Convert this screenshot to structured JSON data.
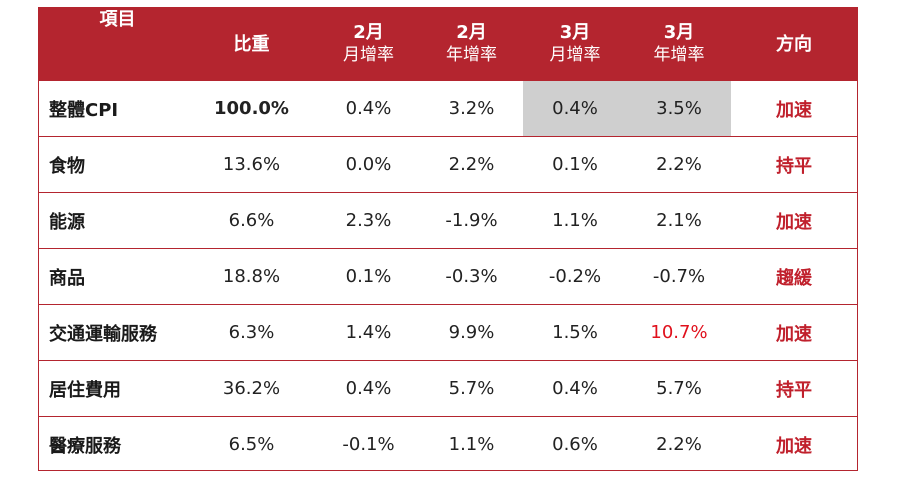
{
  "table": {
    "headers": [
      {
        "line1": "項目",
        "line2": ""
      },
      {
        "line1": "比重",
        "line2": ""
      },
      {
        "line1": "2月",
        "line2": "月增率"
      },
      {
        "line1": "2月",
        "line2": "年增率"
      },
      {
        "line1": "3月",
        "line2": "月增率"
      },
      {
        "line1": "3月",
        "line2": "年增率"
      },
      {
        "line1": "方向",
        "line2": ""
      }
    ],
    "rows": [
      {
        "item": "整體CPI",
        "weight": "100.0%",
        "feb_mom": "0.4%",
        "feb_yoy": "3.2%",
        "mar_mom": "0.4%",
        "mar_yoy": "3.5%",
        "direction": "加速"
      },
      {
        "item": "食物",
        "weight": "13.6%",
        "feb_mom": "0.0%",
        "feb_yoy": "2.2%",
        "mar_mom": "0.1%",
        "mar_yoy": "2.2%",
        "direction": "持平"
      },
      {
        "item": "能源",
        "weight": "6.6%",
        "feb_mom": "2.3%",
        "feb_yoy": "-1.9%",
        "mar_mom": "1.1%",
        "mar_yoy": "2.1%",
        "direction": "加速"
      },
      {
        "item": "商品",
        "weight": "18.8%",
        "feb_mom": "0.1%",
        "feb_yoy": "-0.3%",
        "mar_mom": "-0.2%",
        "mar_yoy": "-0.7%",
        "direction": "趨緩"
      },
      {
        "item": "交通運輸服務",
        "weight": "6.3%",
        "feb_mom": "1.4%",
        "feb_yoy": "9.9%",
        "mar_mom": "1.5%",
        "mar_yoy": "10.7%",
        "direction": "加速"
      },
      {
        "item": "居住費用",
        "weight": "36.2%",
        "feb_mom": "0.4%",
        "feb_yoy": "5.7%",
        "mar_mom": "0.4%",
        "mar_yoy": "5.7%",
        "direction": "持平"
      },
      {
        "item": "醫療服務",
        "weight": "6.5%",
        "feb_mom": "-0.1%",
        "feb_yoy": "1.1%",
        "mar_mom": "0.6%",
        "mar_yoy": "2.2%",
        "direction": "加速"
      }
    ]
  },
  "colors": {
    "header_bg": "#b4252f",
    "border": "#b4252f",
    "direction_text": "#c0202c",
    "highlight_text": "#e0101c",
    "highlight_cell_bg": "#cfcfcf"
  }
}
